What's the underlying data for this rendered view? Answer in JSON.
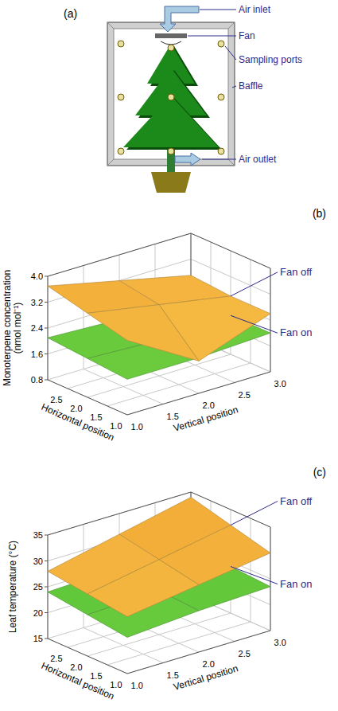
{
  "diagram": {
    "title": "(a)",
    "labels": {
      "air_inlet": "Air inlet",
      "fan": "Fan",
      "sampling_ports": "Sampling ports",
      "baffle": "Baffle",
      "air_outlet": "Air outlet"
    }
  },
  "chart_data": [
    {
      "type": "surface",
      "title": "(b)",
      "xlabel": "Horizontal position",
      "ylabel": "Vertical position",
      "zlabel": "Monoterpene concentration (nmol mol⁻¹)",
      "x": [
        1,
        2,
        3
      ],
      "y": [
        1,
        2,
        3
      ],
      "xlim": [
        1,
        3
      ],
      "ylim": [
        1,
        3
      ],
      "zlim": [
        0.8,
        4
      ],
      "xticks": [
        {
          "value": 1,
          "label": "1.0"
        },
        {
          "value": 1.5,
          "label": "1.5"
        },
        {
          "value": 2,
          "label": "2.0"
        },
        {
          "value": 2.5,
          "label": "2.5"
        }
      ],
      "yticks": [
        {
          "value": 1,
          "label": "1.0"
        },
        {
          "value": 1.5,
          "label": "1.5"
        },
        {
          "value": 2,
          "label": "2.0"
        },
        {
          "value": 2.5,
          "label": "2.5"
        },
        {
          "value": 3,
          "label": "3.0"
        }
      ],
      "zticks": [
        0.8,
        1.6,
        2.4,
        3.2,
        {
          "value": 4,
          "label": "4.0"
        }
      ],
      "grid": true,
      "series": [
        {
          "name": "Fan off",
          "color": "#f5b942",
          "values": [
            [
              3.1,
              1.8,
              2.6
            ],
            [
              3.4,
              3.0,
              2.6
            ],
            [
              3.7,
              3.2,
              2.7
            ]
          ]
        },
        {
          "name": "Fan on",
          "color": "#5cc63a",
          "values": [
            [
              1.9,
              1.9,
              2.0
            ],
            [
              2.0,
              1.9,
              2.0
            ],
            [
              2.1,
              2.0,
              2.0
            ]
          ]
        }
      ]
    },
    {
      "type": "surface",
      "title": "(c)",
      "xlabel": "Horizontal position",
      "ylabel": "Vertical position",
      "zlabel": "Leaf temperature (°C)",
      "x": [
        1,
        2,
        3
      ],
      "y": [
        1,
        2,
        3
      ],
      "xlim": [
        1,
        3
      ],
      "ylim": [
        1,
        3
      ],
      "zlim": [
        15,
        35
      ],
      "xticks": [
        {
          "value": 1,
          "label": "1.0"
        },
        {
          "value": 1.5,
          "label": "1.5"
        },
        {
          "value": 2,
          "label": "2.0"
        },
        {
          "value": 2.5,
          "label": "2.5"
        }
      ],
      "yticks": [
        {
          "value": 1,
          "label": "1.0"
        },
        {
          "value": 1.5,
          "label": "1.5"
        },
        {
          "value": 2,
          "label": "2.0"
        },
        {
          "value": 2.5,
          "label": "2.5"
        },
        {
          "value": 3,
          "label": "3.0"
        }
      ],
      "zticks": [
        15,
        20,
        25,
        30,
        35
      ],
      "grid": true,
      "series": [
        {
          "name": "Fan off",
          "color": "#f5b942",
          "values": [
            [
              26,
              28,
              30
            ],
            [
              27,
              29.5,
              32
            ],
            [
              28,
              31,
              34
            ]
          ]
        },
        {
          "name": "Fan on",
          "color": "#5cc63a",
          "values": [
            [
              22,
              23,
              23.5
            ],
            [
              23,
              23.5,
              24
            ],
            [
              24,
              24.5,
              25
            ]
          ]
        }
      ]
    }
  ]
}
